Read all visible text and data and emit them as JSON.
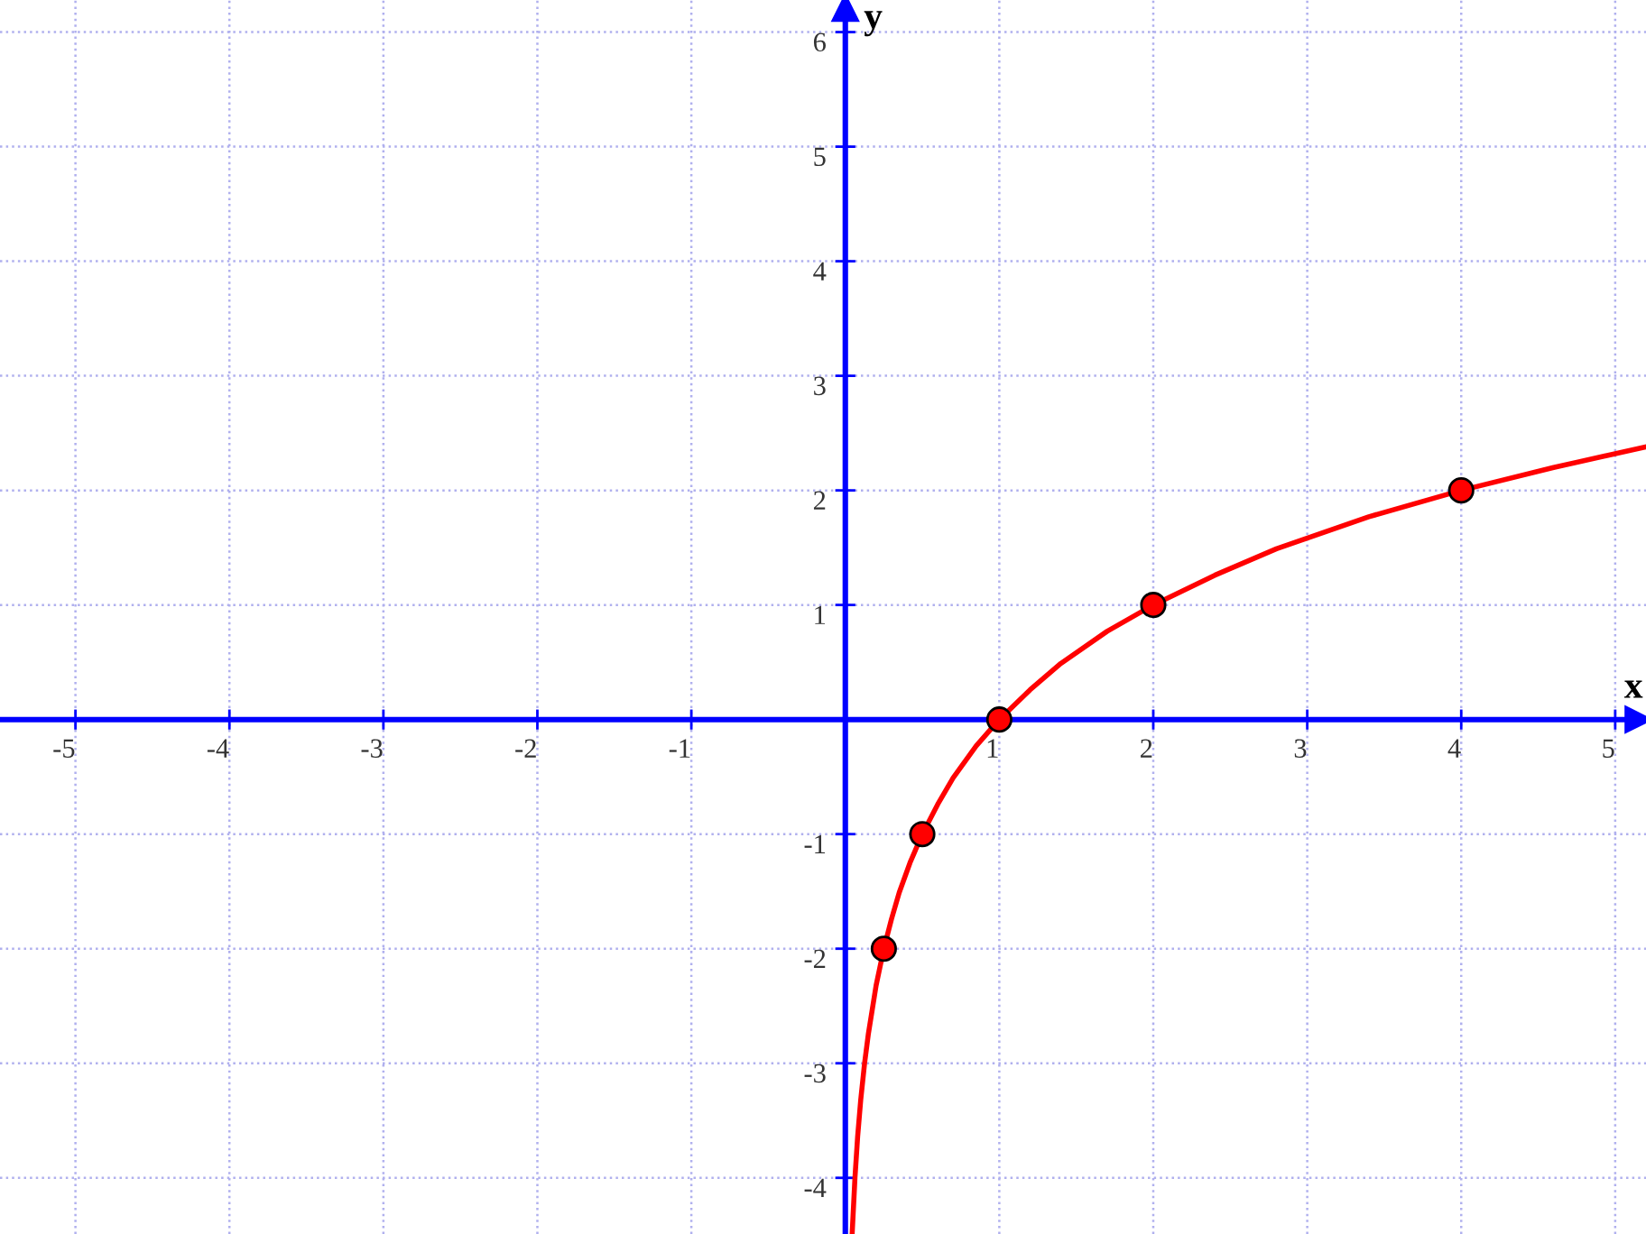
{
  "chart_data": {
    "type": "line",
    "xlabel": "x",
    "ylabel": "y",
    "series": [
      {
        "color": "#ff0000",
        "marker": "none",
        "x": [
          0.045,
          0.0625,
          0.08,
          0.1,
          0.125,
          0.15,
          0.2,
          0.25,
          0.3,
          0.35,
          0.42,
          0.5,
          0.6,
          0.7,
          0.85,
          1,
          1.2,
          1.4,
          1.7,
          2,
          2.4,
          2.8,
          3.4,
          4,
          4.6,
          5.2
        ],
        "values": [
          -4.47,
          -4,
          -3.64,
          -3.32,
          -3,
          -2.74,
          -2.32,
          -2,
          -1.74,
          -1.51,
          -1.25,
          -1,
          -0.74,
          -0.51,
          -0.23,
          0,
          0.26,
          0.49,
          0.77,
          1,
          1.26,
          1.49,
          1.77,
          2,
          2.2,
          2.38
        ]
      },
      {
        "type": "scatter",
        "color": "#ff0000",
        "marker": "circle",
        "x": [
          0.25,
          0.5,
          1,
          2,
          4
        ],
        "values": [
          -2,
          -1,
          0,
          1,
          2
        ]
      }
    ],
    "xlim": [
      -5.49,
      5.2
    ],
    "ylim": [
      -4.49,
      6.28
    ],
    "xticks": [
      -5,
      -4,
      -3,
      -2,
      -1,
      1,
      2,
      3,
      4,
      5
    ],
    "yticks": [
      -4,
      -3,
      -2,
      -1,
      1,
      2,
      3,
      4,
      5,
      6
    ],
    "grid": true
  }
}
